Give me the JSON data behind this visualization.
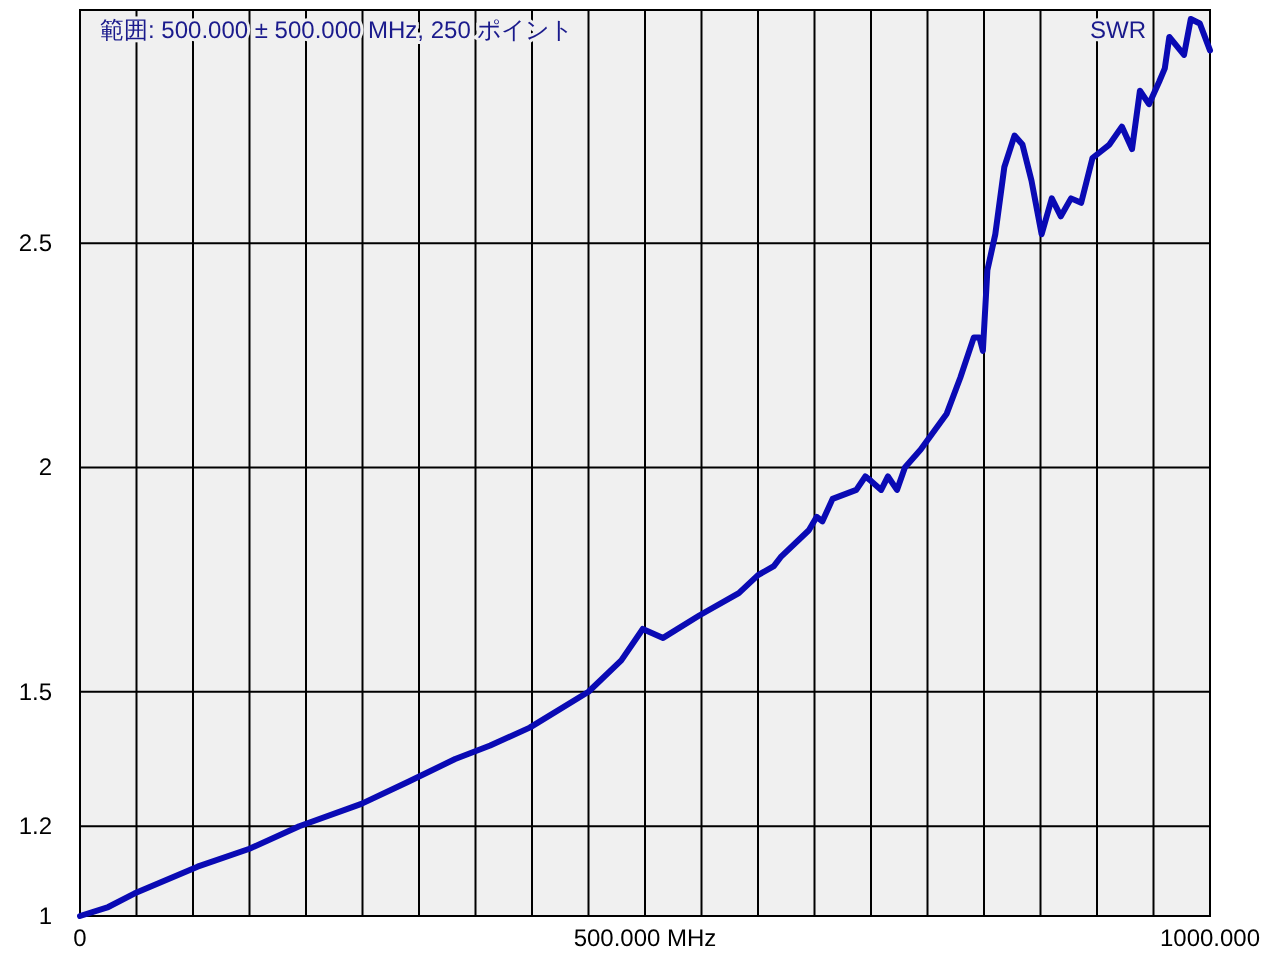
{
  "chart_data": {
    "type": "line",
    "title": "範囲: 500.000 ± 500.000 MHz, 250 ポイント",
    "ylabel": "SWR",
    "xlim": [
      0,
      1000
    ],
    "ylim": [
      1,
      3.02
    ],
    "xticks": [
      {
        "value": 0,
        "label": "0"
      },
      {
        "value": 50,
        "label": null
      },
      {
        "value": 100,
        "label": null
      },
      {
        "value": 150,
        "label": null
      },
      {
        "value": 200,
        "label": null
      },
      {
        "value": 250,
        "label": null
      },
      {
        "value": 300,
        "label": null
      },
      {
        "value": 350,
        "label": null
      },
      {
        "value": 400,
        "label": null
      },
      {
        "value": 450,
        "label": null
      },
      {
        "value": 500,
        "label": "500.000 MHz"
      },
      {
        "value": 550,
        "label": null
      },
      {
        "value": 600,
        "label": null
      },
      {
        "value": 650,
        "label": null
      },
      {
        "value": 700,
        "label": null
      },
      {
        "value": 750,
        "label": null
      },
      {
        "value": 800,
        "label": null
      },
      {
        "value": 850,
        "label": null
      },
      {
        "value": 900,
        "label": null
      },
      {
        "value": 950,
        "label": null
      },
      {
        "value": 1000,
        "label": "1000.000"
      }
    ],
    "yticks": [
      1,
      1.2,
      1.5,
      2,
      2.5
    ],
    "grid": true,
    "series": [
      {
        "color": "#0a0ab4",
        "x": [
          0,
          25,
          48,
          104,
          150,
          194,
          249,
          291,
          332,
          363,
          398,
          450,
          479,
          498,
          516,
          548,
          583,
          600,
          614,
          620,
          645,
          652,
          657,
          666,
          687,
          695,
          700,
          709,
          715,
          723,
          730,
          744,
          767,
          779,
          791,
          796,
          799,
          803,
          810,
          818,
          827,
          834,
          842,
          851,
          860,
          868,
          877,
          886,
          896,
          911,
          922,
          931,
          938,
          946,
          955,
          960,
          964,
          977,
          983,
          991,
          1000
        ],
        "values": [
          1.0,
          1.02,
          1.05,
          1.11,
          1.15,
          1.2,
          1.25,
          1.3,
          1.35,
          1.38,
          1.42,
          1.5,
          1.57,
          1.64,
          1.62,
          1.67,
          1.72,
          1.76,
          1.78,
          1.8,
          1.86,
          1.89,
          1.88,
          1.93,
          1.95,
          1.98,
          1.97,
          1.95,
          1.98,
          1.95,
          2.0,
          2.04,
          2.12,
          2.2,
          2.29,
          2.29,
          2.26,
          2.44,
          2.52,
          2.67,
          2.74,
          2.72,
          2.64,
          2.52,
          2.6,
          2.56,
          2.6,
          2.59,
          2.69,
          2.72,
          2.76,
          2.71,
          2.84,
          2.81,
          2.86,
          2.89,
          2.96,
          2.92,
          3.0,
          2.99,
          2.93
        ]
      }
    ]
  }
}
